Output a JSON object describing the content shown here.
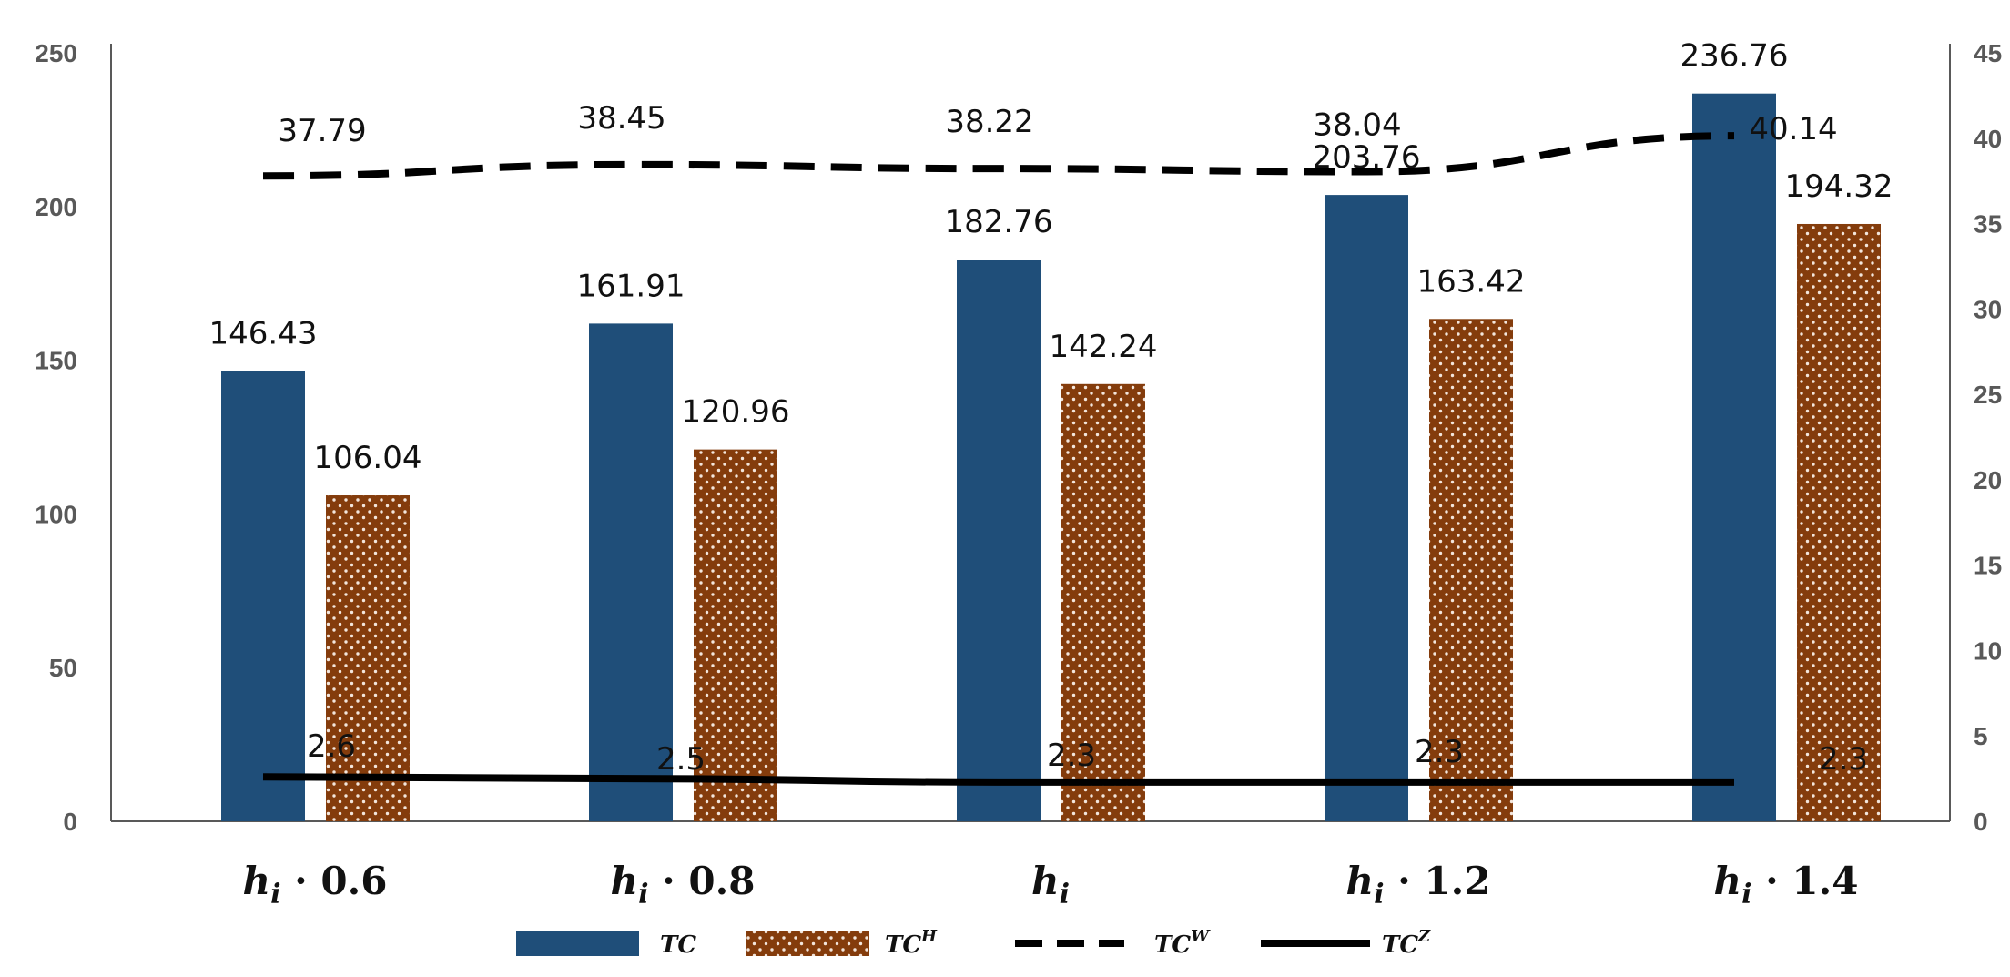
{
  "chart_data": {
    "type": "bar",
    "categories": [
      {
        "base": "h",
        "sub": "i",
        "suffix": " · 0.6"
      },
      {
        "base": "h",
        "sub": "i",
        "suffix": " · 0.8"
      },
      {
        "base": "h",
        "sub": "i",
        "suffix": ""
      },
      {
        "base": "h",
        "sub": "i",
        "suffix": " · 1.2"
      },
      {
        "base": "h",
        "sub": "i",
        "suffix": " · 1.4"
      }
    ],
    "series": [
      {
        "name": "TC",
        "sup": "",
        "kind": "bar",
        "axis": "left",
        "color": "#1f4e79",
        "values": [
          146.43,
          161.91,
          182.76,
          203.76,
          236.76
        ],
        "labels": [
          "146.43",
          "161.91",
          "182.76",
          "203.76",
          "236.76"
        ]
      },
      {
        "name": "TC",
        "sup": "H",
        "kind": "bar",
        "axis": "left",
        "color": "#843c0c",
        "pattern": "dots",
        "values": [
          106.04,
          120.96,
          142.24,
          163.42,
          194.32
        ],
        "labels": [
          "106.04",
          "120.96",
          "142.24",
          "163.42",
          "194.32"
        ]
      },
      {
        "name": "TC",
        "sup": "W",
        "kind": "line",
        "axis": "right",
        "color": "#000000",
        "style": "dashed",
        "values": [
          37.79,
          38.45,
          38.22,
          38.04,
          40.14
        ],
        "labels": [
          "37.79",
          "38.45",
          "38.22",
          "38.04",
          "40.14"
        ]
      },
      {
        "name": "TC",
        "sup": "Z",
        "kind": "line",
        "axis": "right",
        "color": "#000000",
        "style": "solid",
        "values": [
          2.6,
          2.5,
          2.3,
          2.3,
          2.3
        ],
        "labels": [
          "2.6",
          "2.5",
          "2.3",
          "2.3",
          "2.3"
        ]
      }
    ],
    "left_axis": {
      "ylim": [
        0,
        250
      ],
      "ticks": [
        "0",
        "50",
        "100",
        "150",
        "200",
        "250"
      ]
    },
    "right_axis": {
      "ylim": [
        0,
        45
      ],
      "ticks": [
        "0",
        "5",
        "10",
        "15",
        "20",
        "25",
        "30",
        "35",
        "40",
        "45"
      ]
    },
    "title": "",
    "xlabel": "",
    "ylabel": "",
    "grid": false,
    "legend_position": "bottom"
  }
}
